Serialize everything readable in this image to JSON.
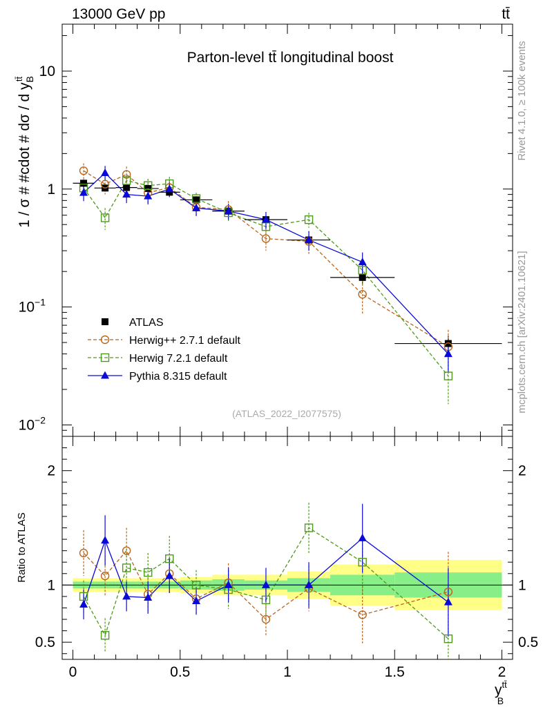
{
  "chart_data": {
    "type": "scatter",
    "header": {
      "left": "13000 GeV pp",
      "right": "tt̄"
    },
    "title": "Parton-level tt̄ longitudinal boost",
    "ylabel": "1 / σ # #cdot # dσ / d y",
    "ylabel_sub": "B",
    "ylabel_sup": "tt̄",
    "xlabel": "y",
    "xlabel_sub": "B",
    "xlabel_sup": "tt̄",
    "ratio_ylabel": "Ratio to ATLAS",
    "side_label_top": "Rivet 4.1.0, ≥ 100k events",
    "side_label_bottom": "mcplots.cern.ch [arXiv:2401.10621]",
    "analysis_id": "(ATLAS_2022_I2077575)",
    "x_range": [
      -0.05,
      2.05
    ],
    "y_range_log": [
      0.008,
      25
    ],
    "ratio_range": [
      0.35,
      2.3
    ],
    "x_ticks": [
      {
        "v": 0,
        "label": "0"
      },
      {
        "v": 0.5,
        "label": "0.5"
      },
      {
        "v": 1,
        "label": "1"
      },
      {
        "v": 1.5,
        "label": "1.5"
      },
      {
        "v": 2,
        "label": "2"
      }
    ],
    "y_ticks": [
      {
        "v": 10,
        "label": "10"
      },
      {
        "v": 1,
        "label": "1"
      },
      {
        "v": 0.1,
        "label": "10",
        "exp": "−1"
      },
      {
        "v": 0.01,
        "label": "10",
        "exp": "−2"
      }
    ],
    "ratio_ticks": [
      {
        "v": 2,
        "label": "2"
      },
      {
        "v": 1,
        "label": "1"
      },
      {
        "v": 0.5,
        "label": "0.5"
      }
    ],
    "bins": [
      [
        0,
        0.1
      ],
      [
        0.1,
        0.2
      ],
      [
        0.2,
        0.3
      ],
      [
        0.3,
        0.4
      ],
      [
        0.4,
        0.5
      ],
      [
        0.5,
        0.65
      ],
      [
        0.65,
        0.8
      ],
      [
        0.8,
        1.0
      ],
      [
        1.0,
        1.2
      ],
      [
        1.2,
        1.5
      ],
      [
        1.5,
        2.0
      ]
    ],
    "x": [
      0.05,
      0.15,
      0.25,
      0.35,
      0.45,
      0.575,
      0.725,
      0.9,
      1.1,
      1.35,
      1.75
    ],
    "series": [
      {
        "name": "ATLAS",
        "color": "#000000",
        "marker": "square-filled",
        "dash": "",
        "values": [
          1.12,
          1.02,
          1.03,
          1.01,
          0.94,
          0.81,
          0.65,
          0.55,
          0.37,
          0.178,
          0.049
        ],
        "errors": [
          0.08,
          0.07,
          0.07,
          0.07,
          0.06,
          0.05,
          0.05,
          0.04,
          0.03,
          0.02,
          0.008
        ],
        "ratio": [
          1,
          1,
          1,
          1,
          1,
          1,
          1,
          1,
          1,
          1,
          1
        ]
      },
      {
        "name": "Herwig++ 2.7.1 default",
        "color": "#b8651c",
        "marker": "circle-open",
        "dash": "5,3",
        "values": [
          1.43,
          1.1,
          1.33,
          0.93,
          1.03,
          0.7,
          0.67,
          0.38,
          0.36,
          0.128,
          0.046
        ],
        "errors": [
          0.22,
          0.2,
          0.22,
          0.18,
          0.18,
          0.11,
          0.12,
          0.08,
          0.08,
          0.04,
          0.018
        ],
        "ratio": [
          1.28,
          1.08,
          1.3,
          0.92,
          1.1,
          0.88,
          1.02,
          0.7,
          0.97,
          0.74,
          0.94
        ],
        "ratio_errors": [
          0.2,
          0.18,
          0.2,
          0.17,
          0.18,
          0.13,
          0.17,
          0.15,
          0.2,
          0.25,
          0.35
        ]
      },
      {
        "name": "Herwig 7.2.1 default",
        "color": "#4d9a1a",
        "marker": "square-open",
        "dash": "5,3",
        "values": [
          1.02,
          0.57,
          1.18,
          1.07,
          1.11,
          0.83,
          0.63,
          0.48,
          0.55,
          0.205,
          0.026
        ],
        "errors": [
          0.14,
          0.12,
          0.15,
          0.15,
          0.16,
          0.1,
          0.1,
          0.07,
          0.08,
          0.05,
          0.011
        ],
        "ratio": [
          0.9,
          0.56,
          1.15,
          1.11,
          1.23,
          1.0,
          0.96,
          0.87,
          1.5,
          1.2,
          0.53
        ],
        "ratio_errors": [
          0.14,
          0.15,
          0.17,
          0.17,
          0.2,
          0.13,
          0.17,
          0.15,
          0.22,
          0.28,
          0.22
        ]
      },
      {
        "name": "Pythia 8.315 default",
        "color": "#0a0ad8",
        "marker": "triangle-filled",
        "dash": "",
        "values": [
          0.93,
          1.37,
          0.9,
          0.87,
          1.0,
          0.69,
          0.65,
          0.55,
          0.37,
          0.24,
          0.04
        ],
        "errors": [
          0.14,
          0.2,
          0.14,
          0.13,
          0.14,
          0.1,
          0.1,
          0.09,
          0.07,
          0.05,
          0.012
        ],
        "ratio": [
          0.83,
          1.39,
          0.9,
          0.89,
          1.08,
          0.86,
          1.0,
          1.0,
          1.0,
          1.41,
          0.85
        ],
        "ratio_errors": [
          0.13,
          0.22,
          0.13,
          0.14,
          0.15,
          0.12,
          0.15,
          0.15,
          0.2,
          0.3,
          0.3
        ]
      }
    ],
    "ratio_band_inner": [
      0.03,
      0.03,
      0.03,
      0.03,
      0.03,
      0.04,
      0.05,
      0.04,
      0.06,
      0.09,
      0.11
    ],
    "ratio_band_outer": [
      0.06,
      0.06,
      0.06,
      0.06,
      0.06,
      0.07,
      0.09,
      0.09,
      0.12,
      0.18,
      0.22
    ]
  }
}
